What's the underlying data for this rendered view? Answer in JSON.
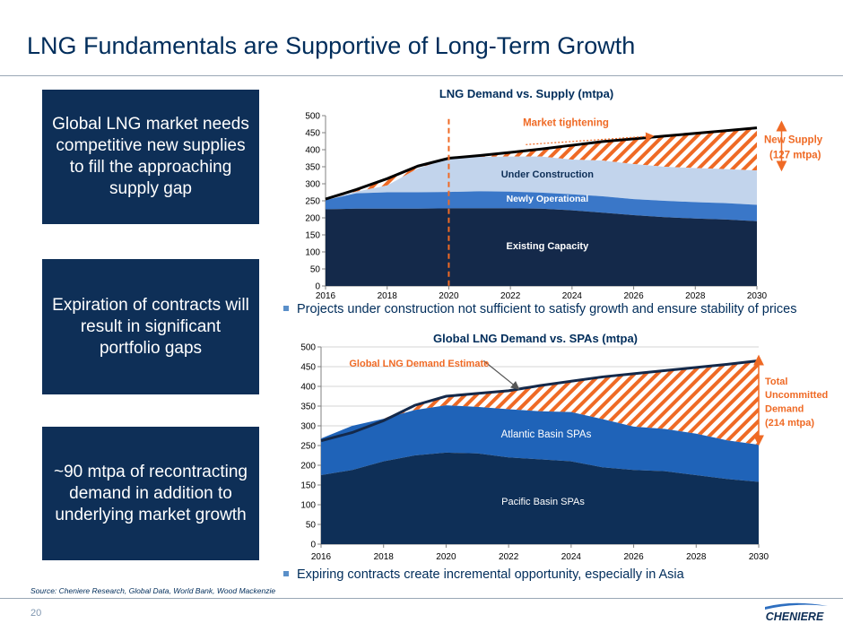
{
  "title": "LNG Fundamentals are Supportive of Long-Term Growth",
  "boxes": [
    "Global LNG market needs competitive new supplies to fill the approaching supply gap",
    "Expiration of contracts will result in significant portfolio gaps",
    "~90 mtpa of recontracting demand in addition to underlying market growth"
  ],
  "bullets": [
    "Projects under construction not sufficient to satisfy growth and ensure stability of prices",
    "Expiring contracts create incremental opportunity, especially in Asia"
  ],
  "source": "Source: Cheniere Research, Global Data, World Bank, Wood Mackenzie",
  "page_number": "20",
  "logo_text": "CHENIERE",
  "colors": {
    "navy": "#0e2f57",
    "dark": "#14294a",
    "mid_blue": "#3a77c8",
    "light_blue": "#c2d4ec",
    "orange": "#ef6a25"
  },
  "chart_data": [
    {
      "type": "area",
      "title": "LNG Demand vs. Supply (mtpa)",
      "x": [
        2016,
        2017,
        2018,
        2019,
        2020,
        2021,
        2022,
        2023,
        2024,
        2025,
        2026,
        2027,
        2028,
        2029,
        2030
      ],
      "xticks": [
        "2016",
        "2018",
        "2020",
        "2022",
        "2024",
        "2026",
        "2028",
        "2030"
      ],
      "ylim": [
        0,
        500
      ],
      "yticks": [
        "0",
        "50",
        "100",
        "150",
        "200",
        "250",
        "300",
        "350",
        "400",
        "450",
        "500"
      ],
      "series": [
        {
          "name": "Existing Capacity",
          "values": [
            225,
            227,
            227,
            227,
            228,
            228,
            228,
            227,
            222,
            215,
            208,
            202,
            198,
            195,
            190
          ]
        },
        {
          "name": "Newly Operational",
          "values": [
            27,
            45,
            48,
            48,
            48,
            50,
            49,
            47,
            47,
            48,
            47,
            48,
            48,
            48,
            48
          ]
        },
        {
          "name": "Under Construction",
          "values": [
            0,
            5,
            20,
            70,
            98,
            101,
            103,
            106,
            102,
            105,
            103,
            100,
            100,
            100,
            101
          ]
        },
        {
          "name": "Demand",
          "values": [
            255,
            283,
            315,
            352,
            375,
            383,
            392,
            402,
            413,
            424,
            432,
            440,
            448,
            456,
            464
          ]
        }
      ],
      "annotations": {
        "market_tightening": "Market tightening",
        "new_supply": "New Supply",
        "new_supply_amount": "(127 mtpa)"
      }
    },
    {
      "type": "area",
      "title": "Global LNG Demand vs. SPAs (mtpa)",
      "x": [
        2016,
        2017,
        2018,
        2019,
        2020,
        2021,
        2022,
        2023,
        2024,
        2025,
        2026,
        2027,
        2028,
        2029,
        2030
      ],
      "xticks": [
        "2016",
        "2018",
        "2020",
        "2022",
        "2024",
        "2026",
        "2028",
        "2030"
      ],
      "ylim": [
        0,
        500
      ],
      "yticks": [
        "0",
        "50",
        "100",
        "150",
        "200",
        "250",
        "300",
        "350",
        "400",
        "450",
        "500"
      ],
      "series": [
        {
          "name": "Pacific Basin SPAs",
          "values": [
            175,
            188,
            210,
            225,
            232,
            230,
            220,
            215,
            210,
            195,
            188,
            185,
            175,
            165,
            158
          ]
        },
        {
          "name": "Atlantic Basin SPAs",
          "values": [
            93,
            112,
            108,
            115,
            120,
            118,
            122,
            122,
            125,
            122,
            110,
            107,
            105,
            98,
            94
          ]
        },
        {
          "name": "Global LNG Demand Estimate",
          "values": [
            262,
            283,
            313,
            352,
            375,
            382,
            389,
            402,
            413,
            424,
            432,
            440,
            448,
            456,
            465
          ]
        }
      ],
      "annotations": {
        "demand_estimate": "Global LNG Demand Estimate",
        "total": "Total",
        "uncommitted": "Uncommitted",
        "demand": "Demand",
        "amount": "(214 mtpa)"
      }
    }
  ]
}
